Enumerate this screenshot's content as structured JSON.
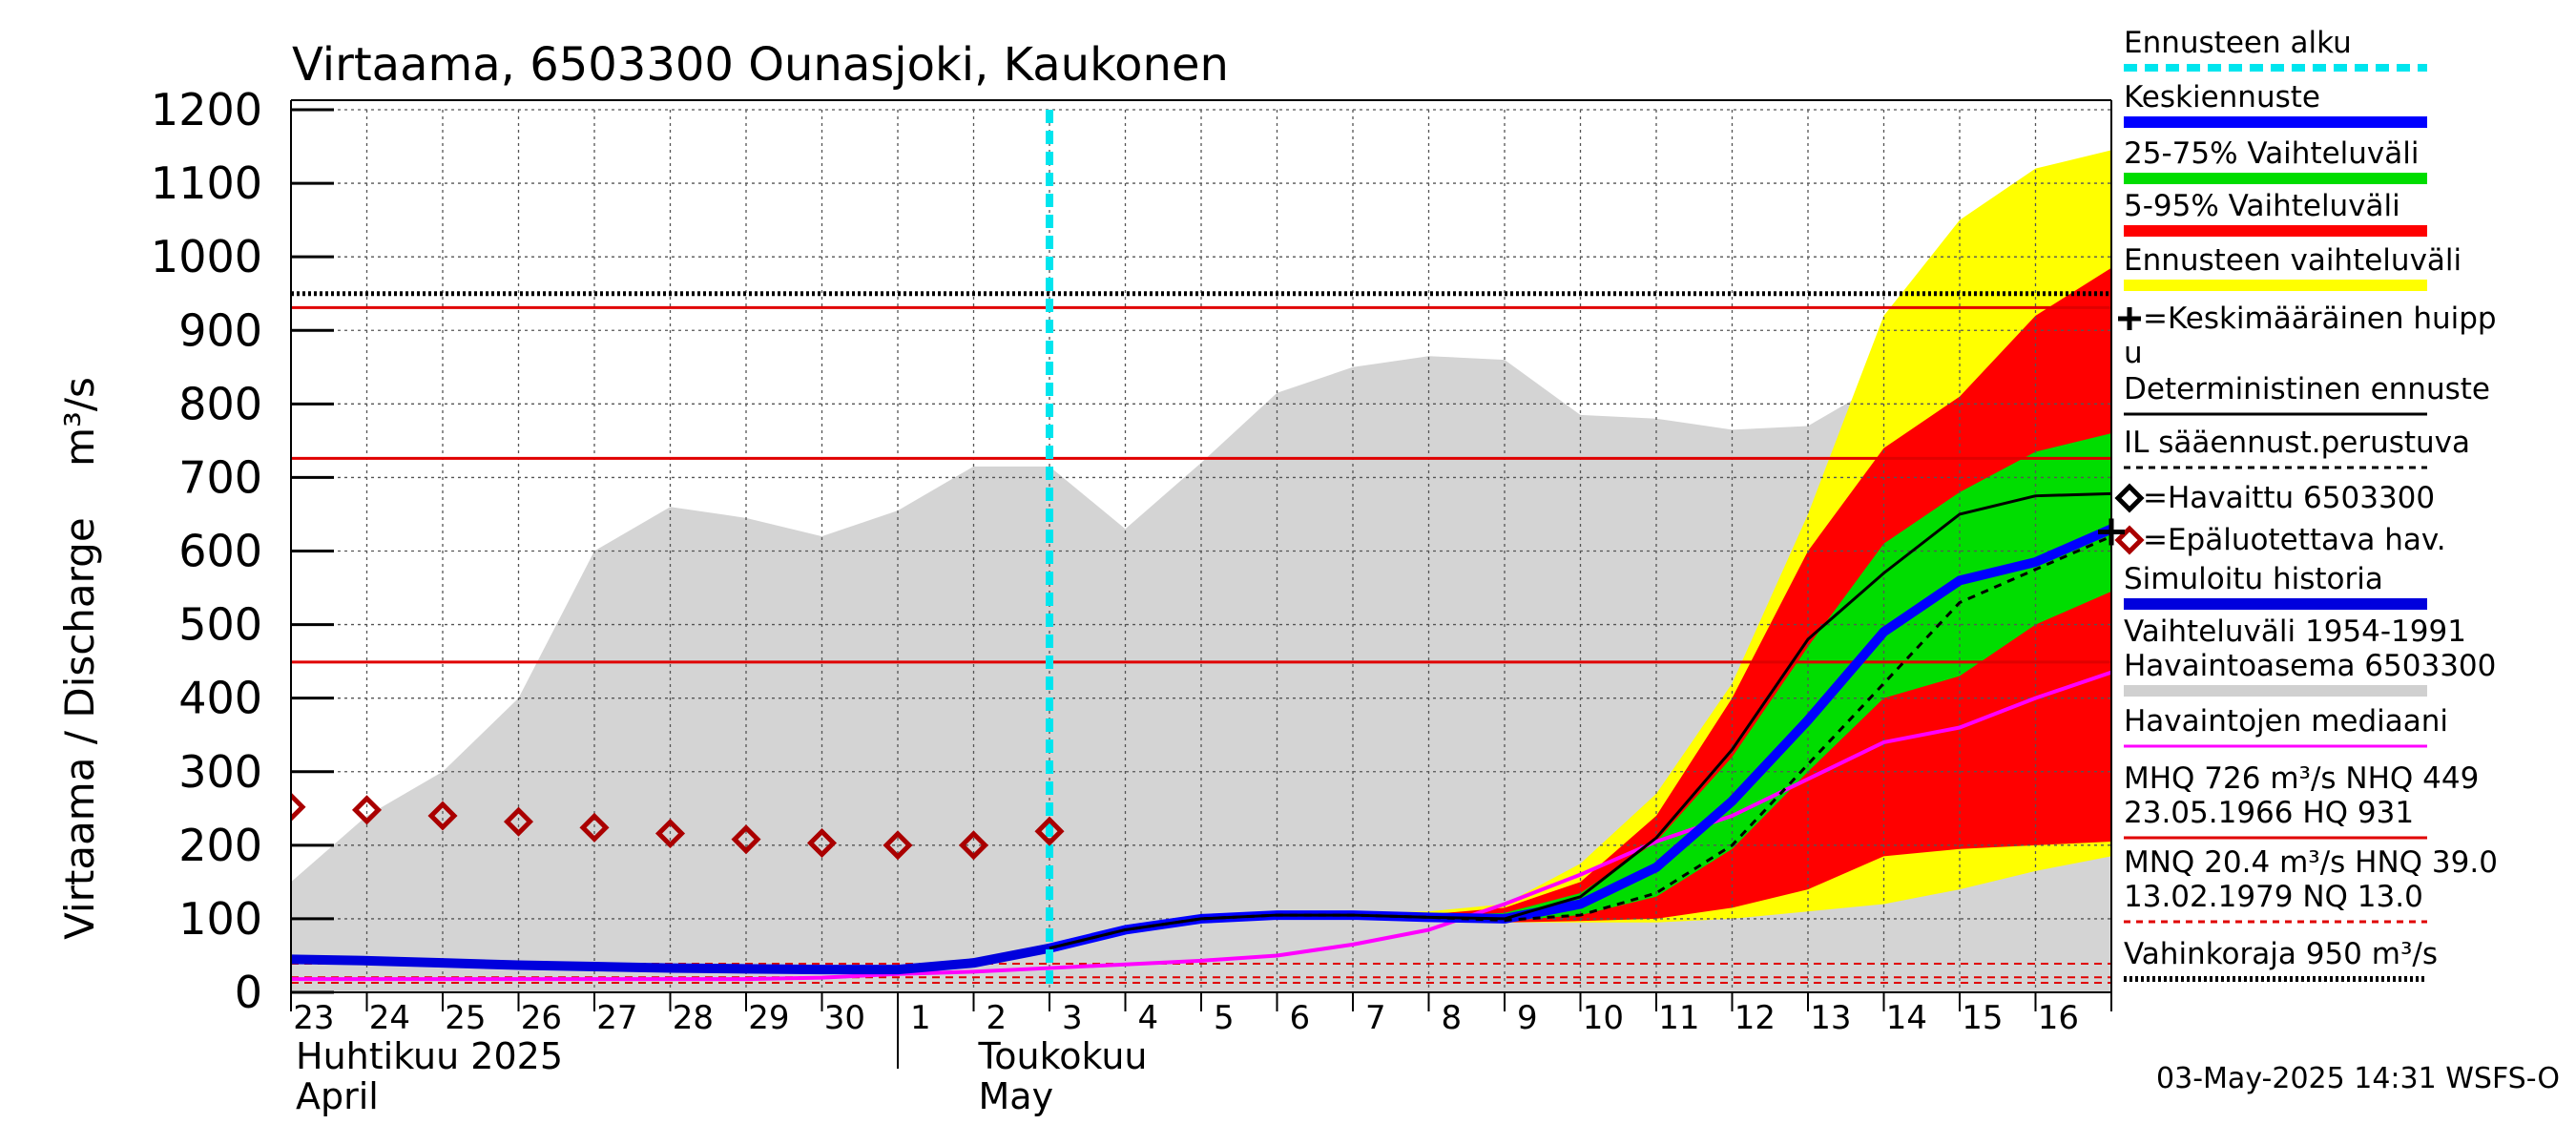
{
  "chart_data": {
    "type": "area",
    "title": "Virtaama, 6503300 Ounasjoki, Kaukonen",
    "ylabel": "Virtaama / Discharge    m³/s",
    "ylim": [
      0,
      1200
    ],
    "y_ticks": [
      0,
      100,
      200,
      300,
      400,
      500,
      600,
      700,
      800,
      900,
      1000,
      1100,
      1200
    ],
    "x_range": [
      "2025-04-23",
      "2025-05-17"
    ],
    "x_tick_labels": [
      "23",
      "24",
      "25",
      "26",
      "27",
      "28",
      "29",
      "30",
      "1",
      "2",
      "3",
      "4",
      "5",
      "6",
      "7",
      "8",
      "9",
      "10",
      "11",
      "12",
      "13",
      "14",
      "15",
      "16"
    ],
    "x_month_labels": [
      {
        "fi": "Huhtikuu  2025",
        "en": "April",
        "start": "2025-04-23"
      },
      {
        "fi": "Toukokuu",
        "en": "May",
        "start": "2025-05-03"
      }
    ],
    "grid": true,
    "forecast_start": "2025-05-03",
    "reference_lines": [
      {
        "name": "HQ",
        "value": 931,
        "color": "#e00000"
      },
      {
        "name": "MHQ",
        "value": 726,
        "color": "#e00000"
      },
      {
        "name": "NHQ",
        "value": 449,
        "color": "#e00000"
      },
      {
        "name": "Vahinkoraja",
        "value": 950,
        "color": "#000000"
      }
    ],
    "low_lines": [
      {
        "name": "HNQ",
        "value": 39.0
      },
      {
        "name": "MNQ",
        "value": 20.4
      },
      {
        "name": "NQ",
        "value": 13.0
      }
    ],
    "x_days": [
      "2025-04-23",
      "2025-04-24",
      "2025-04-25",
      "2025-04-26",
      "2025-04-27",
      "2025-04-28",
      "2025-04-29",
      "2025-04-30",
      "2025-05-01",
      "2025-05-02",
      "2025-05-03",
      "2025-05-04",
      "2025-05-05",
      "2025-05-06",
      "2025-05-07",
      "2025-05-08",
      "2025-05-09",
      "2025-05-10",
      "2025-05-11",
      "2025-05-12",
      "2025-05-13",
      "2025-05-14",
      "2025-05-15",
      "2025-05-16",
      "2025-05-17"
    ],
    "historical_range": {
      "name": "Vaihteluväli 1954-1991 Havaintoasema 6503300",
      "upper": [
        150,
        240,
        300,
        400,
        600,
        660,
        645,
        620,
        655,
        715,
        715,
        630,
        720,
        815,
        850,
        865,
        860,
        785,
        780,
        765,
        770,
        830,
        865,
        835,
        840
      ],
      "lower": [
        0,
        0,
        0,
        0,
        0,
        0,
        0,
        0,
        0,
        0,
        0,
        0,
        0,
        0,
        0,
        0,
        0,
        0,
        0,
        0,
        0,
        0,
        0,
        0,
        0
      ]
    },
    "forecast_x": [
      "2025-05-03",
      "2025-05-04",
      "2025-05-05",
      "2025-05-06",
      "2025-05-07",
      "2025-05-08",
      "2025-05-09",
      "2025-05-10",
      "2025-05-11",
      "2025-05-12",
      "2025-05-13",
      "2025-05-14",
      "2025-05-15",
      "2025-05-16",
      "2025-05-17"
    ],
    "series": [
      {
        "name": "Ennusteen vaihteluväli",
        "kind": "band",
        "color": "#ffff00",
        "upper": [
          60,
          85,
          100,
          105,
          108,
          110,
          120,
          175,
          270,
          420,
          650,
          920,
          1050,
          1120,
          1145
        ],
        "lower": [
          60,
          85,
          100,
          105,
          105,
          100,
          95,
          95,
          95,
          100,
          110,
          120,
          140,
          165,
          185
        ]
      },
      {
        "name": "5-95% Vaihteluväli",
        "kind": "band",
        "color": "#ff0000",
        "upper": [
          60,
          85,
          100,
          105,
          106,
          106,
          115,
          150,
          240,
          400,
          600,
          740,
          810,
          920,
          985
        ],
        "lower": [
          60,
          85,
          100,
          105,
          104,
          100,
          95,
          97,
          100,
          115,
          140,
          185,
          195,
          200,
          205
        ]
      },
      {
        "name": "25-75% Vaihteluväli",
        "kind": "band",
        "color": "#00dd00",
        "upper": [
          60,
          85,
          100,
          105,
          105,
          104,
          108,
          135,
          205,
          320,
          470,
          610,
          680,
          735,
          760
        ],
        "lower": [
          60,
          85,
          100,
          105,
          104,
          101,
          97,
          105,
          130,
          195,
          300,
          400,
          430,
          500,
          545
        ]
      },
      {
        "name": "Havaintojen mediaani",
        "kind": "line",
        "color": "#ff00ff",
        "x": [
          "2025-04-23",
          "2025-04-24",
          "2025-04-25",
          "2025-04-26",
          "2025-04-27",
          "2025-04-28",
          "2025-04-29",
          "2025-04-30",
          "2025-05-01",
          "2025-05-02",
          "2025-05-03",
          "2025-05-04",
          "2025-05-05",
          "2025-05-06",
          "2025-05-07",
          "2025-05-08",
          "2025-05-09",
          "2025-05-10",
          "2025-05-11",
          "2025-05-12",
          "2025-05-13",
          "2025-05-14",
          "2025-05-15",
          "2025-05-16",
          "2025-05-17"
        ],
        "values": [
          18,
          18,
          18,
          18,
          18,
          18,
          18,
          20,
          25,
          28,
          33,
          38,
          43,
          50,
          65,
          85,
          120,
          160,
          205,
          240,
          290,
          340,
          360,
          400,
          435
        ]
      },
      {
        "name": "Simuloitu historia",
        "kind": "line",
        "color": "#0000dd",
        "x": [
          "2025-04-23",
          "2025-04-24",
          "2025-04-25",
          "2025-04-26",
          "2025-04-27",
          "2025-04-28",
          "2025-04-29",
          "2025-04-30",
          "2025-05-01",
          "2025-05-02",
          "2025-05-03"
        ],
        "values": [
          45,
          43,
          40,
          37,
          35,
          33,
          32,
          31,
          31,
          40,
          60
        ]
      },
      {
        "name": "Keskiennuste",
        "kind": "line",
        "color": "#0000ff",
        "x": [
          "2025-05-03",
          "2025-05-04",
          "2025-05-05",
          "2025-05-06",
          "2025-05-07",
          "2025-05-08",
          "2025-05-09",
          "2025-05-10",
          "2025-05-11",
          "2025-05-12",
          "2025-05-13",
          "2025-05-14",
          "2025-05-15",
          "2025-05-16",
          "2025-05-17"
        ],
        "values": [
          60,
          85,
          100,
          105,
          105,
          102,
          100,
          120,
          170,
          260,
          370,
          490,
          560,
          585,
          630
        ]
      },
      {
        "name": "Deterministinen ennuste",
        "kind": "line",
        "color": "#000000",
        "x": [
          "2025-05-03",
          "2025-05-04",
          "2025-05-05",
          "2025-05-06",
          "2025-05-07",
          "2025-05-08",
          "2025-05-09",
          "2025-05-10",
          "2025-05-11",
          "2025-05-12",
          "2025-05-13",
          "2025-05-14",
          "2025-05-15",
          "2025-05-16",
          "2025-05-17"
        ],
        "values": [
          60,
          85,
          100,
          105,
          105,
          102,
          100,
          130,
          210,
          330,
          480,
          570,
          650,
          675,
          678
        ]
      },
      {
        "name": "IL sääennust.perustuva",
        "kind": "dashed",
        "color": "#000000",
        "x": [
          "2025-05-03",
          "2025-05-04",
          "2025-05-05",
          "2025-05-06",
          "2025-05-07",
          "2025-05-08",
          "2025-05-09",
          "2025-05-10",
          "2025-05-11",
          "2025-05-12",
          "2025-05-13",
          "2025-05-14",
          "2025-05-15",
          "2025-05-16",
          "2025-05-17"
        ],
        "values": [
          60,
          85,
          100,
          105,
          105,
          102,
          98,
          105,
          135,
          200,
          310,
          420,
          530,
          575,
          620
        ]
      },
      {
        "name": "Keskimääräinen huippu",
        "kind": "marker",
        "color": "#000000",
        "x": [
          "2025-05-17"
        ],
        "values": [
          626
        ]
      },
      {
        "name": "Epäluotettava hav.",
        "kind": "points",
        "color": "#aa0000",
        "x": [
          "2025-04-23",
          "2025-04-24",
          "2025-04-25",
          "2025-04-26",
          "2025-04-27",
          "2025-04-28",
          "2025-04-29",
          "2025-04-30",
          "2025-05-01",
          "2025-05-02",
          "2025-05-03"
        ],
        "values": [
          252,
          248,
          240,
          232,
          224,
          216,
          208,
          203,
          200,
          200,
          219
        ]
      }
    ]
  },
  "legend": {
    "items": [
      {
        "label": "Ennusteen alku",
        "kind": "dash",
        "color": "#00e5ee"
      },
      {
        "label": "Keskiennuste",
        "kind": "thick",
        "color": "#0000ff"
      },
      {
        "label": "25-75% Vaihteluväli",
        "kind": "thick",
        "color": "#00dd00"
      },
      {
        "label": "5-95% Vaihteluväli",
        "kind": "thick",
        "color": "#ff0000"
      },
      {
        "label": "Ennusteen vaihteluväli",
        "kind": "thick",
        "color": "#ffff00"
      },
      {
        "label": "=Keskimääräinen huipp",
        "label2": "u",
        "kind": "plus",
        "color": "#000000"
      },
      {
        "label": "Deterministinen ennuste",
        "kind": "thin",
        "color": "#000000"
      },
      {
        "label": "IL sääennust.perustuva",
        "kind": "dashthin",
        "color": "#000000"
      },
      {
        "label": "=Havaittu 6503300",
        "kind": "diamond",
        "color": "#000000"
      },
      {
        "label": "=Epäluotettava hav.",
        "kind": "diamond",
        "color": "#aa0000"
      },
      {
        "label": "Simuloitu historia",
        "kind": "thick",
        "color": "#0000dd"
      },
      {
        "label": "Vaihteluväli 1954-1991",
        "label2": " Havaintoasema 6503300",
        "kind": "thick",
        "color": "#d0d0d0"
      },
      {
        "label": "Havaintojen mediaani",
        "kind": "thin",
        "color": "#ff00ff"
      },
      {
        "label": "MHQ  726 m³/s NHQ  449",
        "label2": "23.05.1966 HQ  931",
        "kind": "thin",
        "color": "#e00000"
      },
      {
        "label": "MNQ 20.4 m³/s HNQ 39.0",
        "label2": "13.02.1979 NQ 13.0",
        "kind": "dashthin",
        "color": "#e00000"
      },
      {
        "label": "Vahinkoraja 950 m³/s",
        "kind": "dotted",
        "color": "#000000"
      }
    ]
  },
  "footer": {
    "timestamp": "03-May-2025 14:31 WSFS-O"
  }
}
